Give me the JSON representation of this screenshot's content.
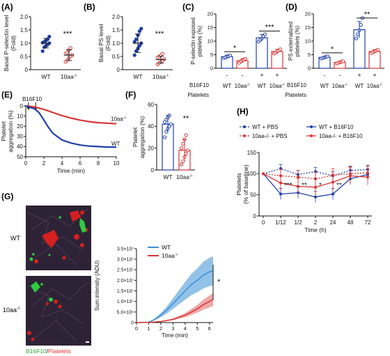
{
  "panels": {
    "A": "(A)",
    "B": "(B)",
    "C": "(C)",
    "D": "(D)",
    "E": "(E)",
    "F": "(F)",
    "G": "(G)",
    "H": "(H)"
  },
  "colors": {
    "wt": "#1f3fa8",
    "ko": "#d93535",
    "wt_light": "#3a8fd6",
    "ko_light": "#e06060"
  },
  "labels": {
    "wt": "WT",
    "ko": "10aa",
    "ko_sup": "-/-",
    "b16": "B16F10",
    "platelets": "Platelets",
    "minus": "-",
    "plus": "+",
    "star1": "*",
    "star2": "**",
    "star3": "***",
    "g_caption_green": "B16F10",
    "g_caption_sep": "/",
    "g_caption_red": "Platelets"
  },
  "chart_data": [
    {
      "panel": "A",
      "type": "scatter",
      "ylabel": [
        "Basal P-selectin level",
        "(Fold)"
      ],
      "ylim": [
        0,
        2.0
      ],
      "yticks": [
        "0",
        "0.5",
        "1.0",
        "1.5",
        "2.0"
      ],
      "categories": [
        "WT",
        "10aa-/-"
      ],
      "series": [
        {
          "name": "WT",
          "values": [
            0.7,
            0.85,
            0.9,
            0.95,
            1.0,
            1.02,
            1.05,
            1.1,
            1.15,
            1.25
          ],
          "mean": 1.0,
          "sd": 0.18
        },
        {
          "name": "10aa-/-",
          "values": [
            0.3,
            0.35,
            0.45,
            0.5,
            0.55,
            0.6,
            0.65,
            0.75,
            0.82
          ],
          "mean": 0.55,
          "sd": 0.2
        }
      ],
      "significance": "***"
    },
    {
      "panel": "B",
      "type": "scatter",
      "ylabel": [
        "Basal PS level",
        "(Fold)"
      ],
      "ylim": [
        0,
        2.0
      ],
      "yticks": [
        "0",
        "0.5",
        "1.0",
        "1.5",
        "2.0"
      ],
      "categories": [
        "WT",
        "10aa-/-"
      ],
      "series": [
        {
          "name": "WT",
          "values": [
            0.55,
            0.7,
            0.8,
            0.9,
            1.0,
            1.05,
            1.15,
            1.3,
            1.45,
            1.55
          ],
          "mean": 1.0,
          "sd": 0.35
        },
        {
          "name": "10aa-/-",
          "values": [
            0.2,
            0.25,
            0.3,
            0.35,
            0.4,
            0.45,
            0.5,
            0.55,
            0.6
          ],
          "mean": 0.38,
          "sd": 0.13
        }
      ],
      "significance": "***"
    },
    {
      "panel": "C",
      "type": "bar",
      "ylabel": [
        "P-selectin exposed",
        "platelets (%)"
      ],
      "ylim": [
        0,
        20
      ],
      "yticks": [
        "0",
        "5",
        "10",
        "15",
        "20"
      ],
      "b16f10": [
        "-",
        "-",
        "+",
        "+"
      ],
      "platelets": [
        "WT",
        "10aa-/-",
        "WT",
        "10aa-/-"
      ],
      "values": [
        4.3,
        2.8,
        11.2,
        6.2
      ],
      "sd": [
        0.5,
        0.7,
        1.2,
        0.8
      ],
      "points": [
        [
          3.8,
          4.0,
          4.3,
          4.5,
          4.7
        ],
        [
          2.0,
          2.5,
          2.8,
          3.2,
          3.5
        ],
        [
          9.8,
          10.5,
          11.0,
          11.8,
          12.5
        ],
        [
          5.4,
          5.8,
          6.2,
          6.6,
          7.0
        ]
      ],
      "significance": [
        {
          "pair": [
            0,
            1
          ],
          "label": "*"
        },
        {
          "pair": [
            2,
            3
          ],
          "label": "***"
        }
      ]
    },
    {
      "panel": "D",
      "type": "bar",
      "ylabel": [
        "PS externalized",
        "platelets (%)"
      ],
      "ylim": [
        0,
        20
      ],
      "yticks": [
        "0",
        "5",
        "10",
        "15",
        "20"
      ],
      "b16f10": [
        "-",
        "-",
        "+",
        "+"
      ],
      "platelets": [
        "WT",
        "10aa-/-",
        "WT",
        "10aa-/-"
      ],
      "values": [
        4.0,
        2.2,
        14.2,
        6.2
      ],
      "sd": [
        0.4,
        0.4,
        3.0,
        0.6
      ],
      "points": [
        [
          3.6,
          3.8,
          4.0,
          4.2,
          4.4
        ],
        [
          1.8,
          2.0,
          2.2,
          2.4,
          2.6
        ],
        [
          11.0,
          12.5,
          14.0,
          16.0,
          18.5
        ],
        [
          5.6,
          6.0,
          6.2,
          6.5,
          6.8
        ]
      ],
      "significance": [
        {
          "pair": [
            0,
            1
          ],
          "label": "*"
        },
        {
          "pair": [
            2,
            3
          ],
          "label": "**"
        }
      ]
    },
    {
      "panel": "E",
      "type": "line",
      "ylabel": [
        "Platelet",
        "aggregation (%)"
      ],
      "xlabel": "Time (min)",
      "xlim": [
        0,
        10
      ],
      "ylim": [
        0,
        50
      ],
      "xticks": [
        "0",
        "2",
        "4",
        "6",
        "8",
        "10"
      ],
      "yticks": [
        "0",
        "10",
        "20",
        "30",
        "40",
        "50"
      ],
      "annotation": "B16F10",
      "arrows_at": [
        0.3,
        1.1
      ],
      "series": [
        {
          "name": "10aa-/-",
          "x": [
            0,
            1,
            2,
            3,
            4,
            5,
            6,
            7,
            8,
            9,
            10
          ],
          "y": [
            0,
            1,
            3.5,
            6.5,
            9.5,
            12,
            14,
            15.5,
            16.5,
            17,
            17.5
          ]
        },
        {
          "name": "WT",
          "x": [
            0,
            1,
            1.5,
            2,
            2.5,
            3,
            4,
            5,
            6,
            7,
            8,
            9,
            10
          ],
          "y": [
            0,
            3,
            7,
            14,
            21,
            27,
            33.5,
            36.5,
            38.5,
            39.5,
            40,
            40.5,
            40.5
          ]
        }
      ]
    },
    {
      "panel": "F",
      "type": "bar",
      "ylabel": [
        "Platelet",
        "aggregation (%)"
      ],
      "ylim": [
        0,
        60
      ],
      "yticks": [
        "0",
        "20",
        "40",
        "60"
      ],
      "categories": [
        "WT",
        "10aa-/-"
      ],
      "values": [
        42,
        18
      ],
      "sd": [
        8,
        10
      ],
      "points": [
        [
          30,
          35,
          38,
          40,
          42,
          44,
          46,
          48,
          50
        ],
        [
          5,
          8,
          12,
          15,
          18,
          20,
          24,
          28,
          32
        ]
      ],
      "significance": "**"
    },
    {
      "panel": "G",
      "type": "line",
      "ylabel": "Sum intensity (ADU)",
      "xlabel": "Time (min)",
      "xlim": [
        0,
        6.3
      ],
      "ylim": [
        0,
        35000000
      ],
      "xticks": [
        "0",
        "1",
        "2",
        "3",
        "4",
        "5",
        "6"
      ],
      "yticks": [
        "0",
        "5.0×10⁶",
        "1.0×10⁷",
        "1.5×10⁷",
        "2.0×10⁷",
        "2.5×10⁷",
        "3.0×10⁷",
        "3.5×10⁷"
      ],
      "series": [
        {
          "name": "WT",
          "x": [
            0,
            1,
            1.5,
            2,
            2.5,
            3,
            3.5,
            4,
            4.5,
            5,
            5.5,
            6,
            6.3
          ],
          "y": [
            0,
            200000,
            1500000,
            3500000,
            6000000,
            9000000,
            12000000,
            15000000,
            18000000,
            20000000,
            22500000,
            24000000,
            24500000
          ]
        },
        {
          "name": "10aa-/-",
          "x": [
            0,
            1,
            2,
            3,
            3.5,
            4,
            4.5,
            5,
            5.5,
            6,
            6.3
          ],
          "y": [
            0,
            100000,
            500000,
            1500000,
            2500000,
            3500000,
            5000000,
            6500000,
            8500000,
            10000000,
            11000000
          ]
        }
      ],
      "significance": "*"
    },
    {
      "panel": "H",
      "type": "line",
      "ylabel": [
        "Platelets",
        "(% of baseline)"
      ],
      "xlabel": "Time (h)",
      "ylim": [
        0,
        150
      ],
      "yticks": [
        "0",
        "50",
        "100",
        "150"
      ],
      "categories": [
        "0",
        "1/12",
        "1/2",
        "2",
        "24",
        "48",
        "72"
      ],
      "series": [
        {
          "name": "WT + PBS",
          "values": [
            100,
            112,
            98,
            105,
            95,
            108,
            110
          ]
        },
        {
          "name": "WT + B16F10",
          "values": [
            100,
            52,
            55,
            45,
            52,
            88,
            98
          ]
        },
        {
          "name": "10aa-/- + PBS",
          "values": [
            100,
            95,
            92,
            88,
            96,
            100,
            102
          ]
        },
        {
          "name": "10aa-/- + B16F10",
          "values": [
            100,
            78,
            70,
            68,
            80,
            95,
            92
          ]
        }
      ],
      "significance": [
        "***",
        "**",
        "*",
        "**"
      ]
    }
  ]
}
